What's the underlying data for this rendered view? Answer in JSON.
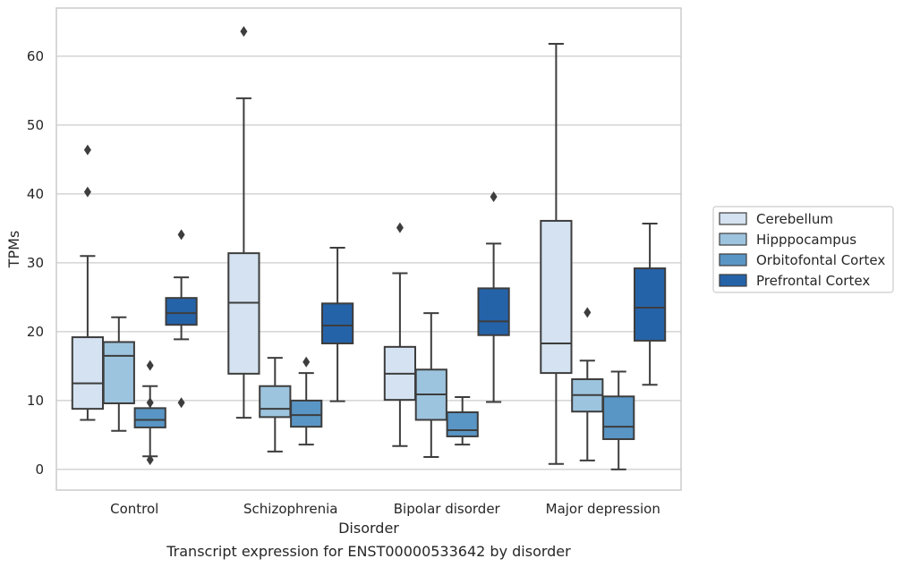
{
  "chart_data": {
    "type": "box",
    "title": "Transcript expression for ENST00000533642 by disorder",
    "xlabel": "Disorder",
    "ylabel": "TPMs",
    "ylim": [
      -3,
      67
    ],
    "yticks": [
      0,
      10,
      20,
      30,
      40,
      50,
      60
    ],
    "grid": "horizontal",
    "legend_position": "right",
    "categories": [
      "Control",
      "Schizophrenia",
      "Bipolar disorder",
      "Major depression"
    ],
    "series": [
      {
        "name": "Cerebellum",
        "color": "#d4e2f1",
        "boxes": [
          {
            "whisker_low": 7.2,
            "q1": 8.8,
            "median": 12.5,
            "q3": 19.2,
            "whisker_high": 31.0,
            "outliers": [
              40.3,
              46.4
            ]
          },
          {
            "whisker_low": 7.5,
            "q1": 13.9,
            "median": 24.2,
            "q3": 31.4,
            "whisker_high": 53.9,
            "outliers": [
              63.6
            ]
          },
          {
            "whisker_low": 3.4,
            "q1": 10.1,
            "median": 13.9,
            "q3": 17.8,
            "whisker_high": 28.5,
            "outliers": [
              35.1
            ]
          },
          {
            "whisker_low": 0.8,
            "q1": 14.0,
            "median": 18.3,
            "q3": 36.1,
            "whisker_high": 61.8,
            "outliers": []
          }
        ]
      },
      {
        "name": "Hipppocampus",
        "color": "#9dc4de",
        "boxes": [
          {
            "whisker_low": 5.6,
            "q1": 9.6,
            "median": 16.5,
            "q3": 18.5,
            "whisker_high": 22.1,
            "outliers": []
          },
          {
            "whisker_low": 2.6,
            "q1": 7.6,
            "median": 8.8,
            "q3": 12.1,
            "whisker_high": 16.2,
            "outliers": []
          },
          {
            "whisker_low": 1.8,
            "q1": 7.2,
            "median": 10.9,
            "q3": 14.5,
            "whisker_high": 22.7,
            "outliers": []
          },
          {
            "whisker_low": 1.3,
            "q1": 8.4,
            "median": 10.8,
            "q3": 13.1,
            "whisker_high": 15.8,
            "outliers": [
              22.8
            ]
          }
        ]
      },
      {
        "name": "Orbitofontal Cortex",
        "color": "#5996c5",
        "boxes": [
          {
            "whisker_low": 1.9,
            "q1": 6.1,
            "median": 7.2,
            "q3": 8.9,
            "whisker_high": 12.1,
            "outliers": [
              1.4,
              9.7,
              15.1
            ]
          },
          {
            "whisker_low": 3.6,
            "q1": 6.2,
            "median": 7.9,
            "q3": 10.0,
            "whisker_high": 14.0,
            "outliers": [
              15.6
            ]
          },
          {
            "whisker_low": 3.6,
            "q1": 4.8,
            "median": 5.7,
            "q3": 8.3,
            "whisker_high": 10.5,
            "outliers": []
          },
          {
            "whisker_low": 0.0,
            "q1": 4.4,
            "median": 6.2,
            "q3": 10.6,
            "whisker_high": 14.2,
            "outliers": []
          }
        ]
      },
      {
        "name": "Prefrontal Cortex",
        "color": "#2563a9",
        "boxes": [
          {
            "whisker_low": 18.9,
            "q1": 21.0,
            "median": 22.7,
            "q3": 24.9,
            "whisker_high": 27.9,
            "outliers": [
              9.7,
              34.1
            ]
          },
          {
            "whisker_low": 9.9,
            "q1": 18.3,
            "median": 20.9,
            "q3": 24.1,
            "whisker_high": 32.2,
            "outliers": []
          },
          {
            "whisker_low": 9.8,
            "q1": 19.5,
            "median": 21.5,
            "q3": 26.3,
            "whisker_high": 32.8,
            "outliers": [
              39.6
            ]
          },
          {
            "whisker_low": 12.3,
            "q1": 18.7,
            "median": 23.5,
            "q3": 29.2,
            "whisker_high": 35.7,
            "outliers": []
          }
        ]
      }
    ]
  }
}
